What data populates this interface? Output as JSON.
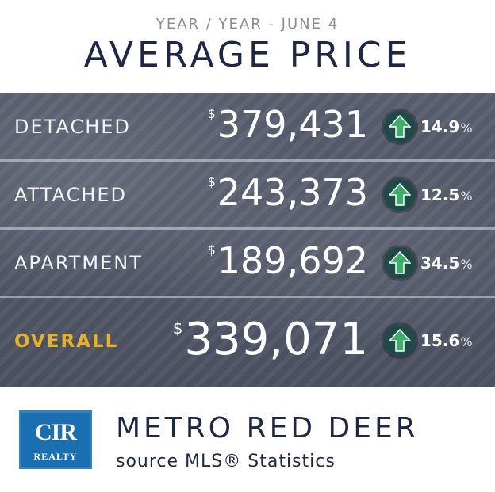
{
  "header": {
    "subtitle": "YEAR / YEAR - JUNE 4",
    "title": "AVERAGE PRICE"
  },
  "rows": [
    {
      "label": "DETACHED",
      "currency": "$",
      "price": "379,431",
      "change": "14.9",
      "unit": "%",
      "trend_icon": "up-arrow-icon"
    },
    {
      "label": "ATTACHED",
      "currency": "$",
      "price": "243,373",
      "change": "12.5",
      "unit": "%",
      "trend_icon": "up-arrow-icon"
    },
    {
      "label": "APARTMENT",
      "currency": "$",
      "price": "189,692",
      "change": "34.5",
      "unit": "%",
      "trend_icon": "up-arrow-icon"
    },
    {
      "label": "OVERALL",
      "currency": "$",
      "price": "339,071",
      "change": "15.6",
      "unit": "%",
      "trend_icon": "up-arrow-icon"
    }
  ],
  "footer": {
    "logo_main": "CIR",
    "logo_sub": "REALTY",
    "title": "METRO RED DEER",
    "source": "source MLS® Statistics"
  },
  "colors": {
    "navy": "#1e2747",
    "overall_label": "#e5b32a",
    "badge_bg": "#1f4a48",
    "arrow": "#3fae6b",
    "logo_blue": "#1a6fb1"
  }
}
